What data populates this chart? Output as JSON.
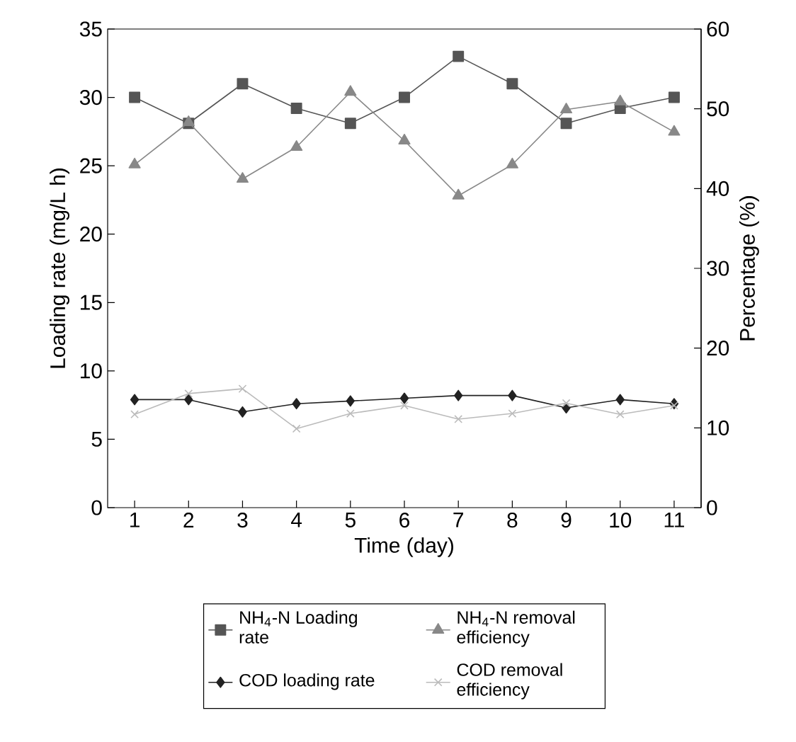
{
  "chart_data": {
    "type": "line",
    "xlabel": "Time (day)",
    "ylabel": "Loading rate (mg/L h)",
    "y2label": "Percentage (%)",
    "x": [
      1,
      2,
      3,
      4,
      5,
      6,
      7,
      8,
      9,
      10,
      11
    ],
    "xlim": [
      0.5,
      11.5
    ],
    "xticks": [
      1,
      2,
      3,
      4,
      5,
      6,
      7,
      8,
      9,
      10,
      11
    ],
    "ylim": [
      0,
      35
    ],
    "yticks": [
      0,
      5,
      10,
      15,
      20,
      25,
      30,
      35
    ],
    "y2lim": [
      0,
      60
    ],
    "y2ticks": [
      0,
      10,
      20,
      30,
      40,
      50,
      60
    ],
    "legend": "bottom",
    "series": [
      {
        "name": "NH$_{4}$-N Loading rate",
        "color": "#555555",
        "marker": "square",
        "values": [
          30,
          28.1,
          31,
          29.2,
          28.1,
          30,
          33,
          31,
          28.1,
          29.2,
          30
        ]
      },
      {
        "name": "NH$_{4}$-N removal efficiency",
        "color": "#888888",
        "marker": "triangle",
        "axis": "y2",
        "values": [
          43,
          48.3,
          41.2,
          45.2,
          52.1,
          46,
          39.1,
          43,
          49.9,
          50.9,
          47.1
        ]
      },
      {
        "name": "COD loading rate",
        "color": "#222222",
        "marker": "diamond",
        "values": [
          7.9,
          7.9,
          7.0,
          7.6,
          7.8,
          8.0,
          8.2,
          8.2,
          7.3,
          7.9,
          7.6
        ]
      },
      {
        "name": "COD removal efficiency",
        "color": "#bbbbbb",
        "marker": "cross",
        "axis": "y2",
        "values": [
          11.7,
          14.3,
          14.9,
          9.9,
          11.8,
          12.8,
          11.1,
          11.8,
          13.1,
          11.7,
          12.8
        ]
      }
    ]
  }
}
